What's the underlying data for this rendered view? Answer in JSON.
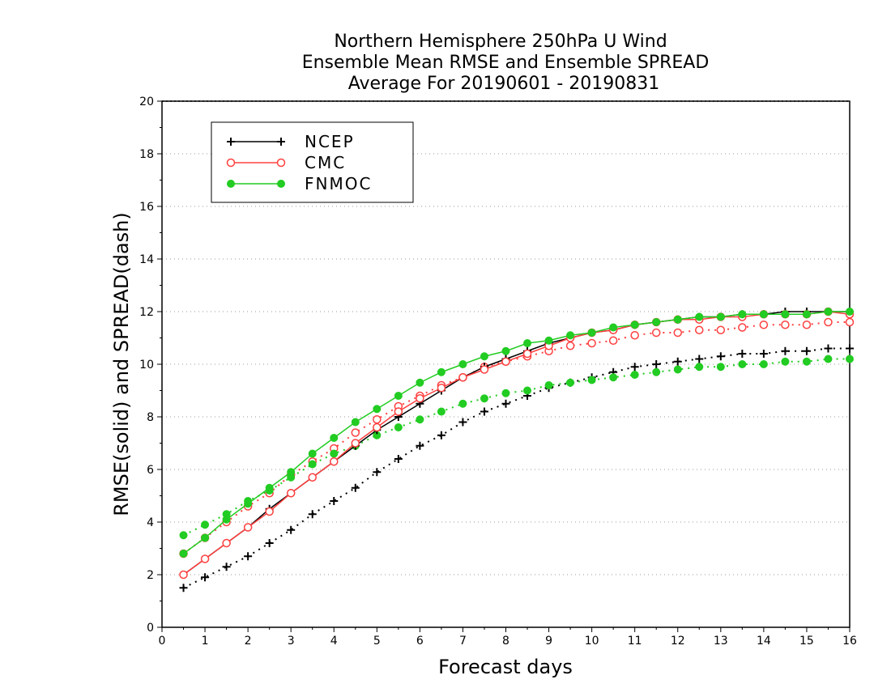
{
  "chart_data": {
    "type": "line",
    "title_lines": [
      "Northern Hemisphere 250hPa U Wind",
      "Ensemble Mean RMSE and Ensemble SPREAD",
      "Average For 20190601 - 20190831"
    ],
    "xlabel": "Forecast days",
    "ylabel": "RMSE(solid) and SPREAD(dash)",
    "xlim": [
      0,
      16
    ],
    "ylim": [
      0,
      20
    ],
    "xticks": [
      "0",
      "1",
      "2",
      "3",
      "4",
      "5",
      "6",
      "7",
      "8",
      "9",
      "10",
      "11",
      "12",
      "13",
      "14",
      "15",
      "16"
    ],
    "yticks": [
      "0",
      "2",
      "4",
      "6",
      "8",
      "10",
      "12",
      "14",
      "16",
      "18",
      "20"
    ],
    "grid": "dotted horizontal",
    "legend_position": "top-left",
    "x": [
      0.5,
      1,
      1.5,
      2,
      2.5,
      3,
      3.5,
      4,
      4.5,
      5,
      5.5,
      6,
      6.5,
      7,
      7.5,
      8,
      8.5,
      9,
      9.5,
      10,
      10.5,
      11,
      11.5,
      12,
      12.5,
      13,
      13.5,
      14,
      14.5,
      15,
      15.5,
      16
    ],
    "series": [
      {
        "name": "NCEP",
        "color": "#000000",
        "marker": "plus",
        "style": "solid",
        "values": [
          2.0,
          2.6,
          3.2,
          3.8,
          4.5,
          5.1,
          5.7,
          6.3,
          6.9,
          7.5,
          8.0,
          8.5,
          9.0,
          9.5,
          9.9,
          10.2,
          10.5,
          10.8,
          11.0,
          11.2,
          11.3,
          11.5,
          11.6,
          11.7,
          11.8,
          11.8,
          11.9,
          11.9,
          12.0,
          12.0,
          12.0,
          12.0
        ]
      },
      {
        "name": "CMC",
        "color": "#ff4040",
        "marker": "open-circle",
        "style": "solid",
        "values": [
          2.0,
          2.6,
          3.2,
          3.8,
          4.4,
          5.1,
          5.7,
          6.3,
          7.0,
          7.6,
          8.2,
          8.7,
          9.1,
          9.5,
          9.8,
          10.1,
          10.4,
          10.7,
          11.0,
          11.2,
          11.3,
          11.5,
          11.6,
          11.7,
          11.7,
          11.8,
          11.8,
          11.9,
          11.9,
          11.9,
          12.0,
          11.9
        ]
      },
      {
        "name": "FNMOC",
        "color": "#22cc22",
        "marker": "filled-circle",
        "style": "solid",
        "values": [
          2.8,
          3.4,
          4.1,
          4.7,
          5.3,
          5.9,
          6.6,
          7.2,
          7.8,
          8.3,
          8.8,
          9.3,
          9.7,
          10.0,
          10.3,
          10.5,
          10.8,
          10.9,
          11.1,
          11.2,
          11.4,
          11.5,
          11.6,
          11.7,
          11.8,
          11.8,
          11.9,
          11.9,
          11.9,
          11.9,
          12.0,
          12.0
        ]
      },
      {
        "name": "NCEP",
        "color": "#000000",
        "marker": "plus",
        "style": "dash",
        "values": [
          1.5,
          1.9,
          2.3,
          2.7,
          3.2,
          3.7,
          4.3,
          4.8,
          5.3,
          5.9,
          6.4,
          6.9,
          7.3,
          7.8,
          8.2,
          8.5,
          8.8,
          9.1,
          9.3,
          9.5,
          9.7,
          9.9,
          10.0,
          10.1,
          10.2,
          10.3,
          10.4,
          10.4,
          10.5,
          10.5,
          10.6,
          10.6
        ]
      },
      {
        "name": "CMC",
        "color": "#ff4040",
        "marker": "open-circle",
        "style": "dash",
        "values": [
          2.8,
          3.4,
          4.0,
          4.6,
          5.1,
          5.8,
          6.3,
          6.8,
          7.4,
          7.9,
          8.4,
          8.8,
          9.2,
          9.5,
          9.9,
          10.1,
          10.3,
          10.5,
          10.7,
          10.8,
          10.9,
          11.1,
          11.2,
          11.2,
          11.3,
          11.3,
          11.4,
          11.5,
          11.5,
          11.5,
          11.6,
          11.6
        ]
      },
      {
        "name": "FNMOC",
        "color": "#22cc22",
        "marker": "filled-circle",
        "style": "dash",
        "values": [
          3.5,
          3.9,
          4.3,
          4.8,
          5.2,
          5.7,
          6.2,
          6.6,
          6.9,
          7.3,
          7.6,
          7.9,
          8.2,
          8.5,
          8.7,
          8.9,
          9.0,
          9.2,
          9.3,
          9.4,
          9.5,
          9.6,
          9.7,
          9.8,
          9.9,
          9.9,
          10.0,
          10.0,
          10.1,
          10.1,
          10.2,
          10.2
        ]
      }
    ],
    "legend": [
      {
        "label": "NCEP",
        "color": "#000000",
        "marker": "plus"
      },
      {
        "label": "CMC",
        "color": "#ff4040",
        "marker": "open-circle"
      },
      {
        "label": "FNMOC",
        "color": "#22cc22",
        "marker": "filled-circle"
      }
    ]
  }
}
